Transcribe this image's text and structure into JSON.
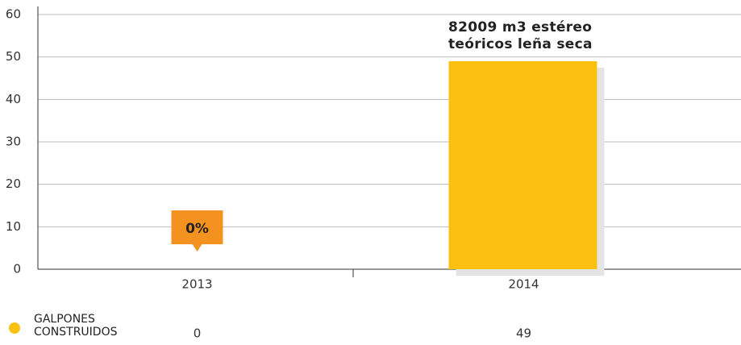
{
  "chart_data": {
    "type": "bar",
    "categories": [
      "2013",
      "2014"
    ],
    "series": [
      {
        "name": "GALPONES CONSTRUIDOS",
        "color": "#fcc010",
        "values": [
          0,
          49
        ]
      }
    ],
    "ylim": [
      0,
      60
    ],
    "yticks": [
      0,
      10,
      20,
      30,
      40,
      50,
      60
    ],
    "grid": true,
    "annotations": [
      "0%",
      "82009 m3 estéreo teóricos leña seca"
    ],
    "annotation_color": "#f4921f"
  }
}
